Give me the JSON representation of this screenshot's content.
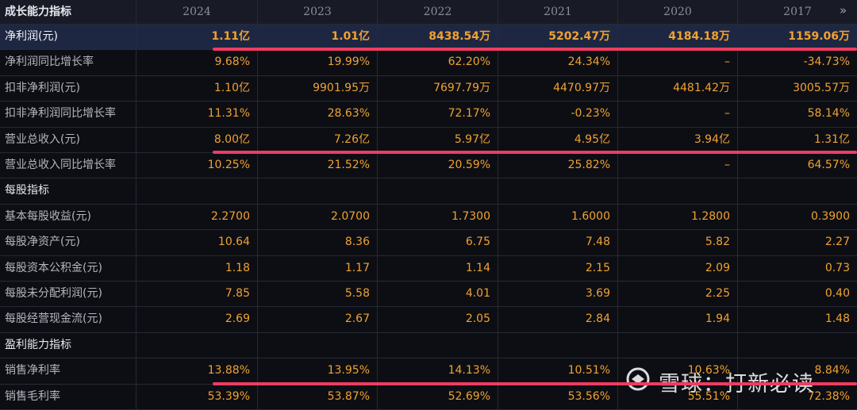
{
  "header": {
    "title": "成长能力指标",
    "years": [
      "2024",
      "2023",
      "2022",
      "2021",
      "2020",
      "2017"
    ]
  },
  "table": {
    "rows": [
      {
        "label": "净利润(元)",
        "values": [
          "1.11亿",
          "1.01亿",
          "8438.54万",
          "5202.47万",
          "4184.18万",
          "1159.06万"
        ]
      },
      {
        "label": "净利润同比增长率",
        "values": [
          "9.68%",
          "19.99%",
          "62.20%",
          "24.34%",
          "–",
          "-34.73%"
        ]
      },
      {
        "label": "扣非净利润(元)",
        "values": [
          "1.10亿",
          "9901.95万",
          "7697.79万",
          "4470.97万",
          "4481.42万",
          "3005.57万"
        ]
      },
      {
        "label": "扣非净利润同比增长率",
        "values": [
          "11.31%",
          "28.63%",
          "72.17%",
          "-0.23%",
          "–",
          "58.14%"
        ]
      },
      {
        "label": "营业总收入(元)",
        "values": [
          "8.00亿",
          "7.26亿",
          "5.97亿",
          "4.95亿",
          "3.94亿",
          "1.31亿"
        ]
      },
      {
        "label": "营业总收入同比增长率",
        "values": [
          "10.25%",
          "21.52%",
          "20.59%",
          "25.82%",
          "–",
          "64.57%"
        ]
      },
      {
        "label": "每股指标"
      },
      {
        "label": "基本每股收益(元)",
        "values": [
          "2.2700",
          "2.0700",
          "1.7300",
          "1.6000",
          "1.2800",
          "0.3900"
        ]
      },
      {
        "label": "每股净资产(元)",
        "values": [
          "10.64",
          "8.36",
          "6.75",
          "7.48",
          "5.82",
          "2.27"
        ]
      },
      {
        "label": "每股资本公积金(元)",
        "values": [
          "1.18",
          "1.17",
          "1.14",
          "2.15",
          "2.09",
          "0.73"
        ]
      },
      {
        "label": "每股未分配利润(元)",
        "values": [
          "7.85",
          "5.58",
          "4.01",
          "3.69",
          "2.25",
          "0.40"
        ]
      },
      {
        "label": "每股经营现金流(元)",
        "values": [
          "2.69",
          "2.67",
          "2.05",
          "2.84",
          "1.94",
          "1.48"
        ]
      },
      {
        "label": "盈利能力指标"
      },
      {
        "label": "销售净利率",
        "values": [
          "13.88%",
          "13.95%",
          "14.13%",
          "10.51%",
          "10.63%",
          "8.84%"
        ]
      },
      {
        "label": "销售毛利率",
        "values": [
          "53.39%",
          "53.87%",
          "52.69%",
          "53.56%",
          "55.51%",
          "72.38%"
        ]
      }
    ]
  },
  "watermark": "雪球：打新必读"
}
